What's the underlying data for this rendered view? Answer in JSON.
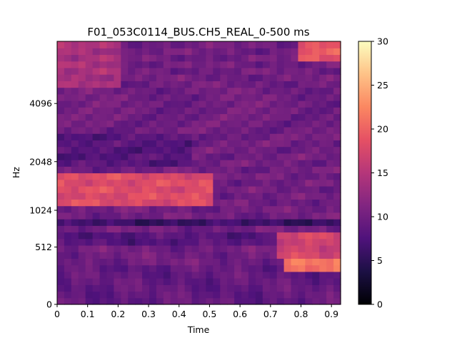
{
  "chart_data": {
    "type": "heatmap",
    "title": "F01_053C0114_BUS.CH5_REAL_0-500 ms",
    "xlabel": "Time",
    "ylabel": "Hz",
    "xlim": [
      0,
      0.93
    ],
    "x_ticks": [
      "0",
      "0.1",
      "0.2",
      "0.3",
      "0.4",
      "0.5",
      "0.6",
      "0.7",
      "0.8",
      "0.9"
    ],
    "x_tick_values": [
      0,
      0.1,
      0.2,
      0.3,
      0.4,
      0.5,
      0.6,
      0.7,
      0.8,
      0.9
    ],
    "y_scale": "mel",
    "y_ticks": [
      "0",
      "512",
      "1024",
      "2048",
      "4096"
    ],
    "y_tick_values": [
      0,
      512,
      1024,
      2048,
      4096
    ],
    "colormap": "magma",
    "colorbar": {
      "vmin": 0,
      "vmax": 30,
      "ticks": [
        "0",
        "5",
        "10",
        "15",
        "20",
        "25",
        "30"
      ],
      "tick_values": [
        0,
        5,
        10,
        15,
        20,
        25,
        30
      ]
    },
    "grid": false,
    "time_frames": 40,
    "mel_bins": 40,
    "regions": [
      {
        "desc": "base level",
        "value": 10
      },
      {
        "desc": "low band 0-300Hz",
        "value": 9
      },
      {
        "desc": "500-700Hz early",
        "value": 8
      },
      {
        "desc": "500Hz late strong",
        "value": 17
      },
      {
        "desc": "300Hz late peak",
        "value": 21
      },
      {
        "desc": "800-900Hz dark band",
        "value": 6
      },
      {
        "desc": "1100-1800Hz early-mid strong",
        "value": 18
      },
      {
        "desc": "2000-3000Hz dark",
        "value": 8
      },
      {
        "desc": "5000+Hz early stripes",
        "value": 14
      },
      {
        "desc": "top right",
        "value": 19
      }
    ]
  }
}
